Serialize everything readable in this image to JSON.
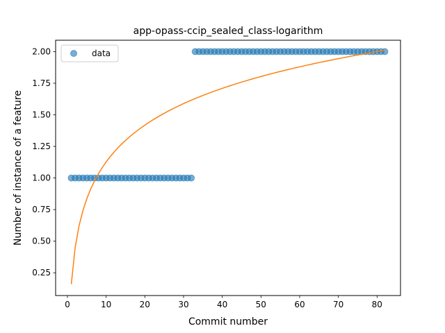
{
  "chart_data": {
    "type": "scatter",
    "title": "app-opass-ccip_sealed_class-logarithm",
    "xlabel": "Commit number",
    "ylabel": "Number of instance of a feature",
    "xlim": [
      -3.05,
      86.05
    ],
    "ylim": [
      0.07,
      2.09
    ],
    "x_ticks": [
      0,
      10,
      20,
      30,
      40,
      50,
      60,
      70,
      80
    ],
    "x_tick_labels": [
      "0",
      "10",
      "20",
      "30",
      "40",
      "50",
      "60",
      "70",
      "80"
    ],
    "y_ticks": [
      0.25,
      0.5,
      0.75,
      1.0,
      1.25,
      1.5,
      1.75,
      2.0
    ],
    "y_tick_labels": [
      "0.25",
      "0.50",
      "0.75",
      "1.00",
      "1.25",
      "1.50",
      "1.75",
      "2.00"
    ],
    "grid": false,
    "legend": {
      "position": "top-left",
      "entries": [
        "data"
      ]
    },
    "series": [
      {
        "name": "data",
        "kind": "scatter",
        "color": "#1f77b4",
        "segments": [
          {
            "x_from": 1,
            "x_to": 32,
            "y": 1.0
          },
          {
            "x_from": 33,
            "x_to": 82,
            "y": 2.0
          }
        ]
      },
      {
        "kind": "line",
        "color": "#ff7f0e",
        "fit": {
          "model": "logarithmic",
          "a": 0.16,
          "b": 0.42
        },
        "x_range": [
          1,
          82
        ]
      }
    ]
  }
}
